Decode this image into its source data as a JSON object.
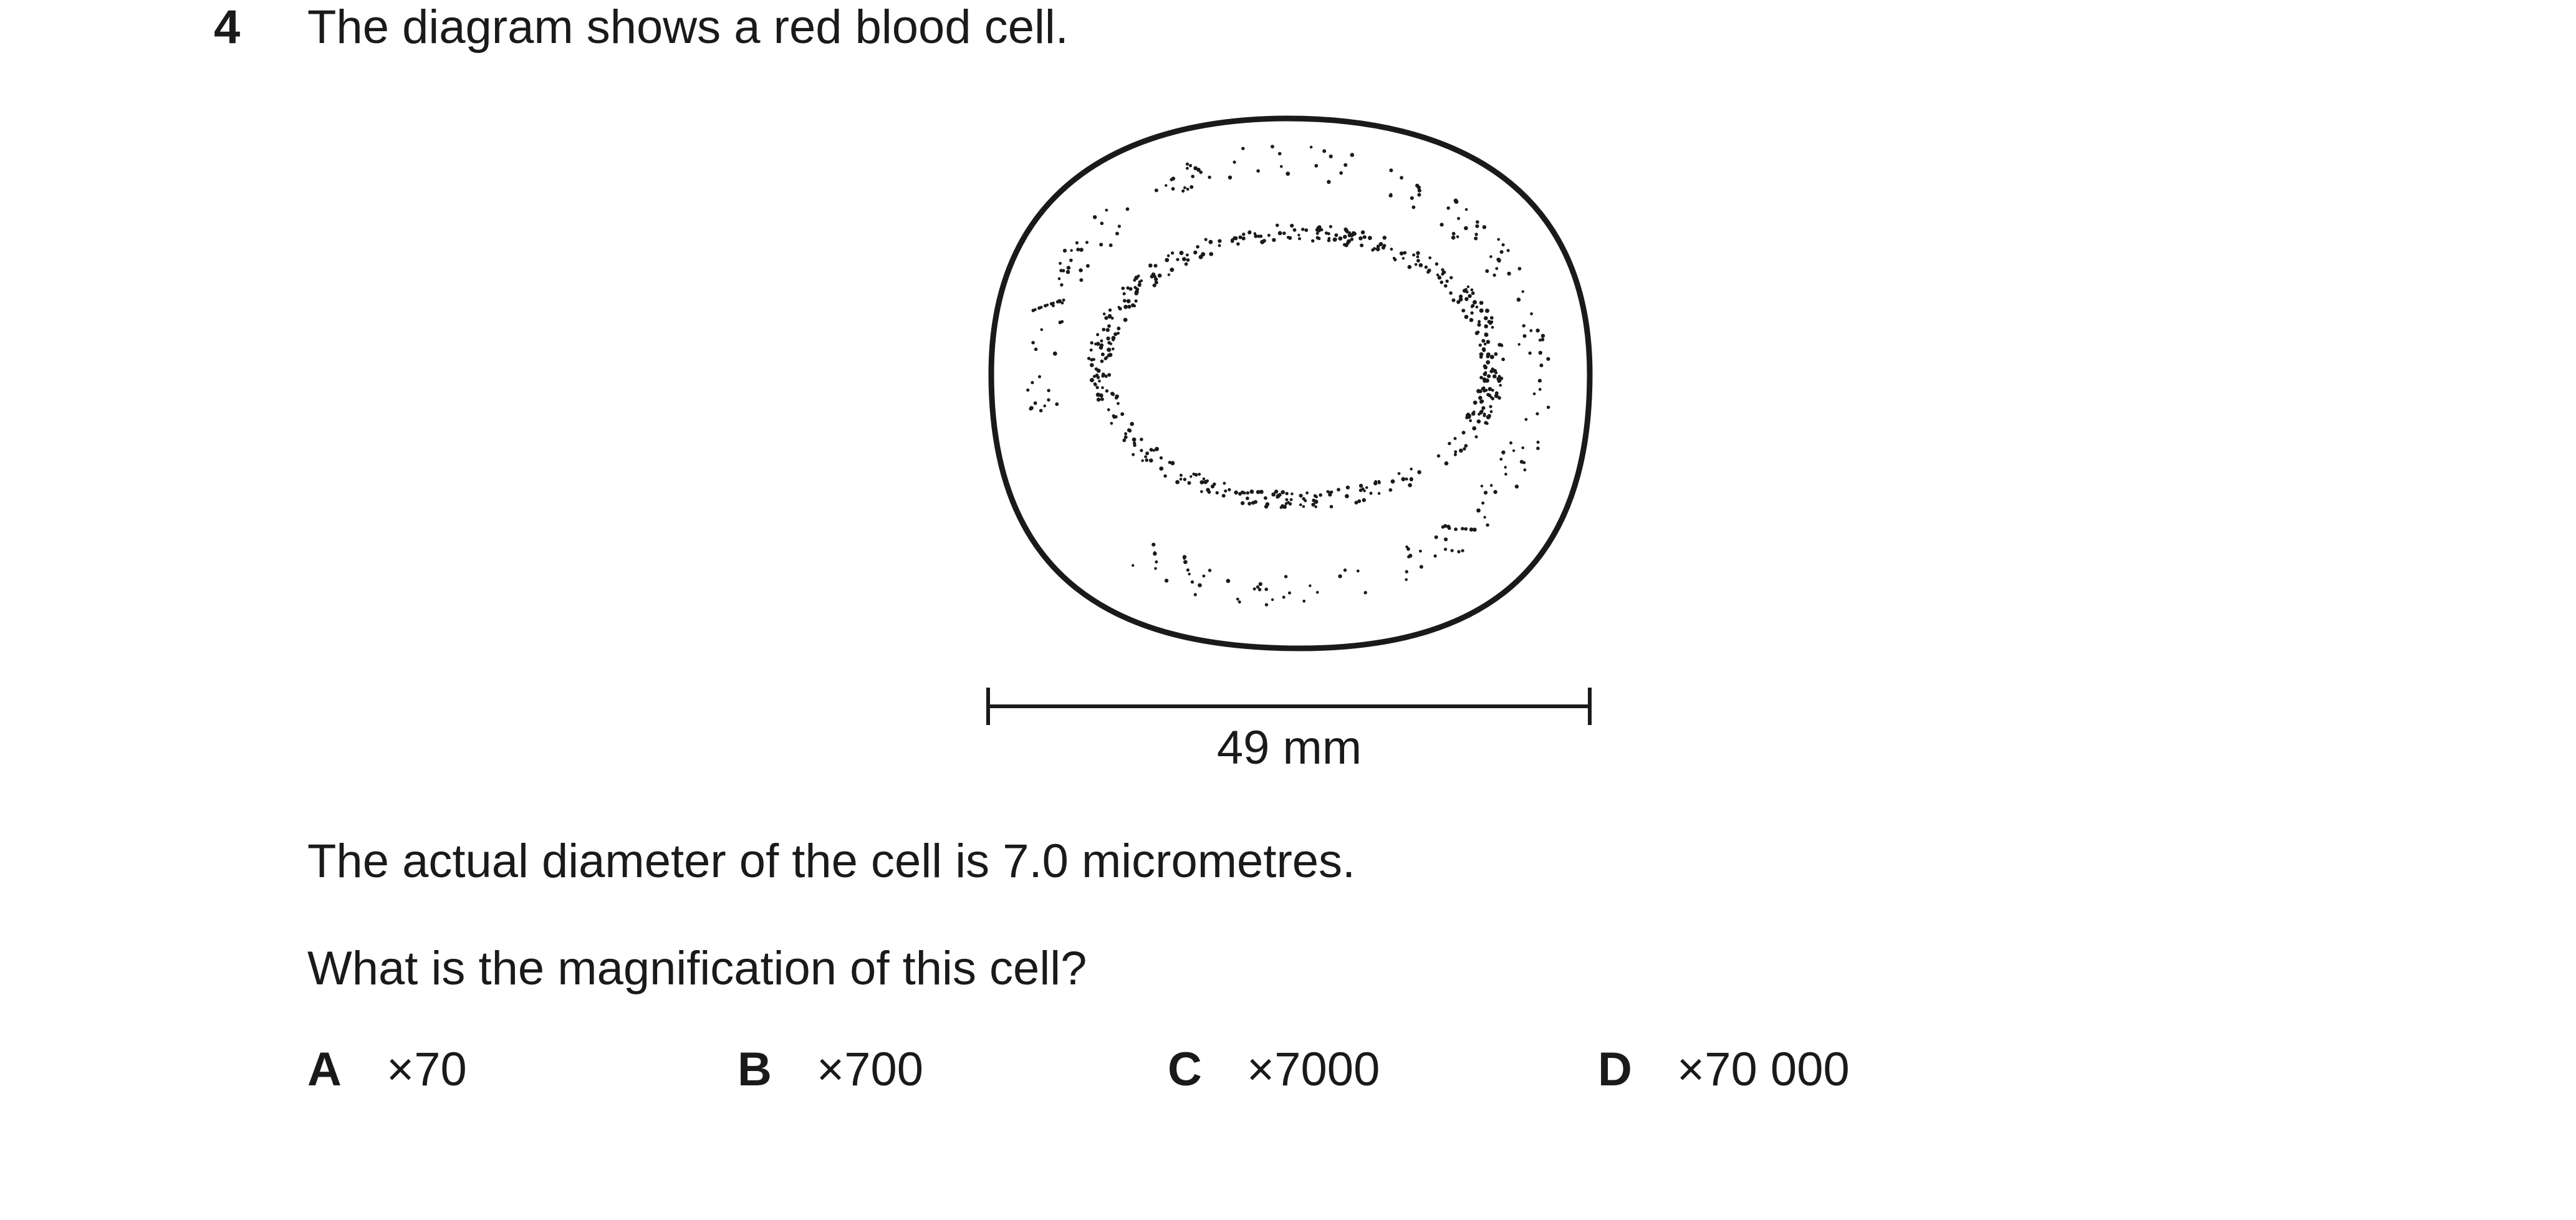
{
  "question": {
    "number": "4",
    "stem": "The diagram shows a red blood cell.",
    "diagram": {
      "scale_label": "49 mm"
    },
    "statement": "The actual diameter of the cell is 7.0 micrometres.",
    "prompt": "What is the magnification of this cell?",
    "options": [
      {
        "letter": "A",
        "value": "×70"
      },
      {
        "letter": "B",
        "value": "×700"
      },
      {
        "letter": "C",
        "value": "×7000"
      },
      {
        "letter": "D",
        "value": "×70 000"
      }
    ]
  }
}
